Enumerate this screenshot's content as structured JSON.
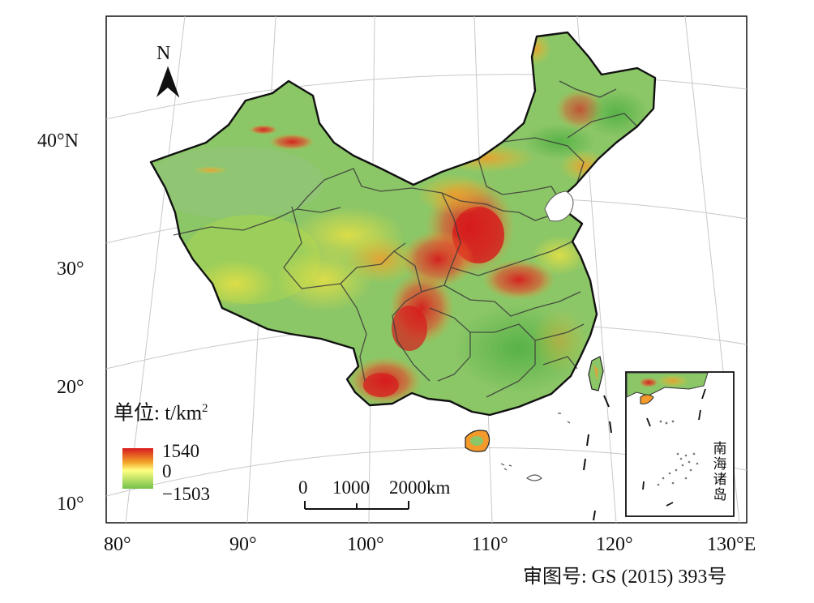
{
  "graticule_labels": {
    "latitude": [
      "40°N",
      "30°",
      "20°",
      "10°"
    ],
    "longitude": [
      "80°",
      "90°",
      "100°",
      "110°",
      "120°",
      "130°E"
    ]
  },
  "north_arrow": {
    "label": "N",
    "icon": "north-arrow-icon"
  },
  "legend": {
    "title": "单位: t/km",
    "title_sup": "2",
    "max_label": "1540",
    "mid_label": "0",
    "min_label": "−1503",
    "color_ramp": [
      "#d7191c",
      "#f4a52a",
      "#ffff80",
      "#74c14b"
    ]
  },
  "scale_bar": {
    "labels": [
      "0",
      "1000",
      "2000km"
    ]
  },
  "inset": {
    "label": "南海诸岛"
  },
  "approval_number": "审图号: GS (2015) 393号",
  "colors": {
    "red": "#d7191c",
    "orange": "#f39a2b",
    "yellow": "#e3e34c",
    "light_green": "#9bce5b",
    "green": "#63b64a",
    "boundary": "#3a3a3a"
  }
}
